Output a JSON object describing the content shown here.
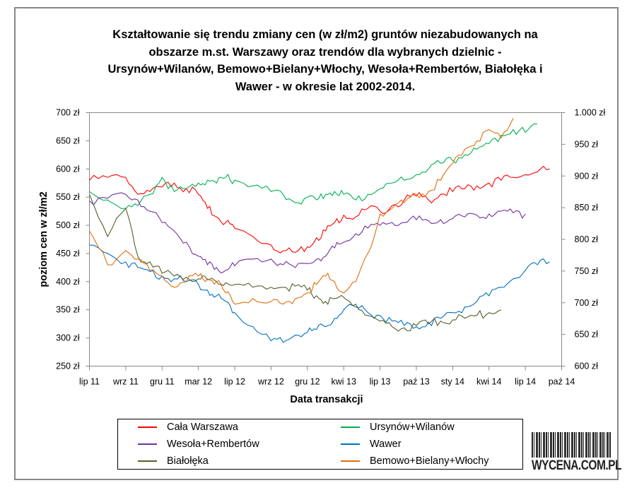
{
  "chart_data": {
    "type": "line",
    "title": "Kształtowanie się trendu zmiany cen (w zł/m2) gruntów niezabudowanych na obszarze m.st. Warszawy oraz trendów dla wybranych dzielnic - Ursynów+Wilanów, Bemowo+Bielany+Włochy, Wesoła+Rembertów, Białołęka i Wawer - w okresie lat 2002-2014.",
    "title_lines": [
      "Kształtowanie się trendu zmiany cen (w zł/m2) gruntów niezabudowanych na",
      "obszarze m.st. Warszawy oraz trendów dla wybranych dzielnic -",
      "Ursynów+Wilanów, Bemowo+Bielany+Włochy, Wesoła+Rembertów, Białołęka i",
      "Wawer - w okresie lat 2002-2014."
    ],
    "xlabel": "Data transakcji",
    "ylabel": "poziom cen w zł/m2",
    "ylim": [
      250,
      700
    ],
    "y2lim": [
      600,
      1000
    ],
    "y_ticks": [
      "250 zł",
      "300 zł",
      "350 zł",
      "400 zł",
      "450 zł",
      "500 zł",
      "550 zł",
      "600 zł",
      "650 zł",
      "700 zł"
    ],
    "y2_ticks": [
      "600 zł",
      "650 zł",
      "700 zł",
      "750 zł",
      "800 zł",
      "850 zł",
      "900 zł",
      "950 zł",
      "1.000 zł"
    ],
    "x_ticks": [
      {
        "label": "lip 11",
        "date": "2011-07"
      },
      {
        "label": "wrz 11",
        "date": "2011-09"
      },
      {
        "label": "gru 11",
        "date": "2011-12"
      },
      {
        "label": "mar 12",
        "date": "2012-03"
      },
      {
        "label": "lip 12",
        "date": "2012-07"
      },
      {
        "label": "wrz 12",
        "date": "2012-09"
      },
      {
        "label": "gru 12",
        "date": "2012-12"
      },
      {
        "label": "kwi 13",
        "date": "2013-04"
      },
      {
        "label": "lip 13",
        "date": "2013-07"
      },
      {
        "label": "paź 13",
        "date": "2013-10"
      },
      {
        "label": "sty 14",
        "date": "2014-01"
      },
      {
        "label": "kwi 14",
        "date": "2014-04"
      },
      {
        "label": "lip 14",
        "date": "2014-07"
      },
      {
        "label": "paź 14",
        "date": "2014-10"
      }
    ],
    "grid": false,
    "legend_position": "bottom",
    "start": "2011-07",
    "series": [
      {
        "name": "Cała Warszawa",
        "color": "#ff0000",
        "values": [
          580,
          585,
          585,
          555,
          560,
          568,
          575,
          565,
          555,
          530,
          515,
          505,
          495,
          480,
          465,
          455,
          452,
          462,
          478,
          490,
          505,
          518,
          515,
          530,
          525,
          535,
          545,
          552,
          545,
          555,
          560,
          565,
          570,
          575,
          580,
          585,
          590,
          595,
          600
        ]
      },
      {
        "name": "Ursynów+Wilanów",
        "color": "#00b050",
        "values": [
          560,
          545,
          530,
          535,
          555,
          585,
          560,
          565,
          575,
          580,
          575,
          585,
          580,
          570,
          560,
          555,
          540,
          550,
          545,
          555,
          560,
          555,
          545,
          555,
          565,
          575,
          580,
          590,
          600,
          610,
          615,
          625,
          635,
          645,
          660,
          670,
          665,
          680
        ]
      },
      {
        "name": "Wesoła+Rembertów",
        "color": "#7030a0",
        "values": [
          543,
          548,
          555,
          545,
          525,
          505,
          490,
          470,
          445,
          430,
          425,
          420,
          428,
          440,
          440,
          430,
          425,
          432,
          440,
          445,
          460,
          470,
          485,
          495,
          500,
          505,
          505,
          510,
          508,
          510,
          512,
          515,
          518,
          520,
          525,
          522,
          520
        ]
      },
      {
        "name": "Wawer",
        "color": "#0070c0",
        "values": [
          465,
          450,
          435,
          425,
          418,
          410,
          405,
          400,
          395,
          385,
          375,
          365,
          345,
          320,
          295,
          292,
          305,
          310,
          315,
          320,
          335,
          350,
          355,
          345,
          340,
          330,
          322,
          320,
          328,
          335,
          345,
          355,
          365,
          375,
          390,
          405,
          420,
          430,
          435
        ]
      },
      {
        "name": "Białołęka",
        "color": "#4f6228",
        "values": [
          555,
          480,
          530,
          445,
          435,
          415,
          410,
          408,
          405,
          403,
          400,
          398,
          395,
          390,
          390,
          390,
          392,
          385,
          375,
          365,
          370,
          372,
          360,
          340,
          330,
          320,
          318,
          322,
          325,
          330,
          332,
          335,
          340,
          345,
          350
        ]
      },
      {
        "name": "Bemowo+Bielany+Włochy",
        "color": "#e36c09",
        "values": [
          490,
          430,
          455,
          440,
          420,
          410,
          390,
          400,
          410,
          405,
          400,
          380,
          360,
          370,
          365,
          360,
          370,
          380,
          395,
          410,
          400,
          380,
          400,
          450,
          520,
          530,
          540,
          555,
          560,
          580,
          610,
          635,
          650,
          670,
          655,
          690
        ]
      }
    ]
  }
}
